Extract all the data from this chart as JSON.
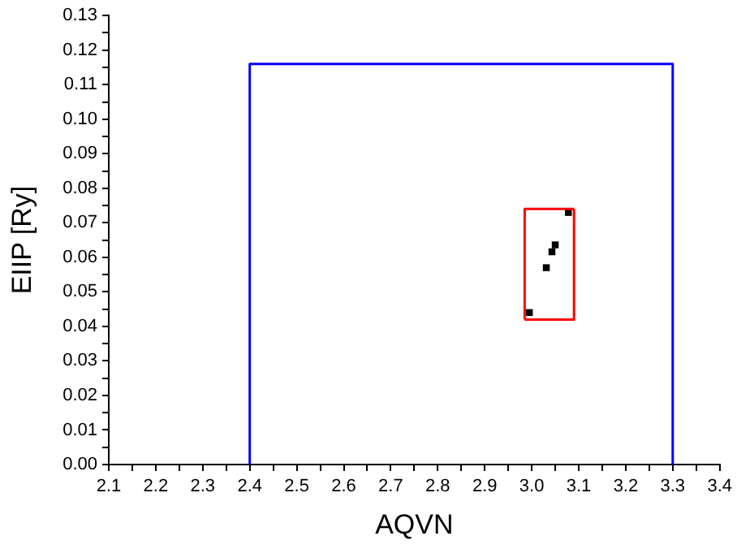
{
  "chart_data": {
    "type": "scatter",
    "xlabel": "AQVN",
    "ylabel": "EIIP [Ry]",
    "xlim": [
      2.1,
      3.4
    ],
    "ylim": [
      0,
      0.13
    ],
    "xticks": [
      2.1,
      {
        "value": 2.15,
        "label": null
      },
      2.2,
      {
        "value": 2.25,
        "label": null
      },
      2.3,
      {
        "value": 2.35,
        "label": null
      },
      2.4,
      {
        "value": 2.45,
        "label": null
      },
      2.5,
      {
        "value": 2.55,
        "label": null
      },
      2.6,
      {
        "value": 2.65,
        "label": null
      },
      2.7,
      {
        "value": 2.75,
        "label": null
      },
      2.8,
      {
        "value": 2.85,
        "label": null
      },
      2.9,
      {
        "value": 2.95,
        "label": null
      },
      {
        "value": 3,
        "label": "3.0"
      },
      {
        "value": 3.05,
        "label": null
      },
      3.1,
      {
        "value": 3.15,
        "label": null
      },
      3.2,
      {
        "value": 3.25,
        "label": null
      },
      3.3,
      {
        "value": 3.35,
        "label": null
      },
      3.4
    ],
    "yticks": [
      {
        "value": 0,
        "label": "0.00"
      },
      {
        "value": 0.005,
        "label": null
      },
      0.01,
      {
        "value": 0.015,
        "label": null
      },
      0.02,
      {
        "value": 0.025,
        "label": null
      },
      0.03,
      {
        "value": 0.035,
        "label": null
      },
      0.04,
      {
        "value": 0.045,
        "label": null
      },
      0.05,
      {
        "value": 0.055,
        "label": null
      },
      0.06,
      {
        "value": 0.065,
        "label": null
      },
      0.07,
      {
        "value": 0.075,
        "label": null
      },
      0.08,
      {
        "value": 0.085,
        "label": null
      },
      0.09,
      {
        "value": 0.095,
        "label": null
      },
      {
        "value": 0.1,
        "label": "0.10"
      },
      {
        "value": 0.105,
        "label": null
      },
      0.11,
      {
        "value": 0.115,
        "label": null
      },
      0.12,
      {
        "value": 0.125,
        "label": null
      },
      0.13
    ],
    "grid": false,
    "legend": false,
    "series": [
      {
        "type": "line",
        "color": "#0000ff",
        "marker": "none",
        "x": [
          2.4,
          2.4,
          3.3,
          3.3
        ],
        "values": [
          0,
          0.116,
          0.116,
          0
        ]
      },
      {
        "type": "line",
        "color": "#ff0000",
        "marker": "none",
        "x": [
          2.985,
          2.985,
          3.09
        ],
        "values": [
          0.042,
          0.074,
          0.074
        ]
      },
      {
        "type": "line",
        "color": "#ff0000",
        "marker": "none",
        "x": [
          2.985,
          3.09,
          3.09
        ],
        "values": [
          0.042,
          0.042,
          0.074
        ]
      },
      {
        "type": "scatter",
        "color": "#000000",
        "marker": "square",
        "x": [
          2.995,
          3.031,
          3.043,
          3.05,
          3.078
        ],
        "values": [
          0.044,
          0.057,
          0.0616,
          0.0636,
          0.073
        ]
      }
    ]
  }
}
